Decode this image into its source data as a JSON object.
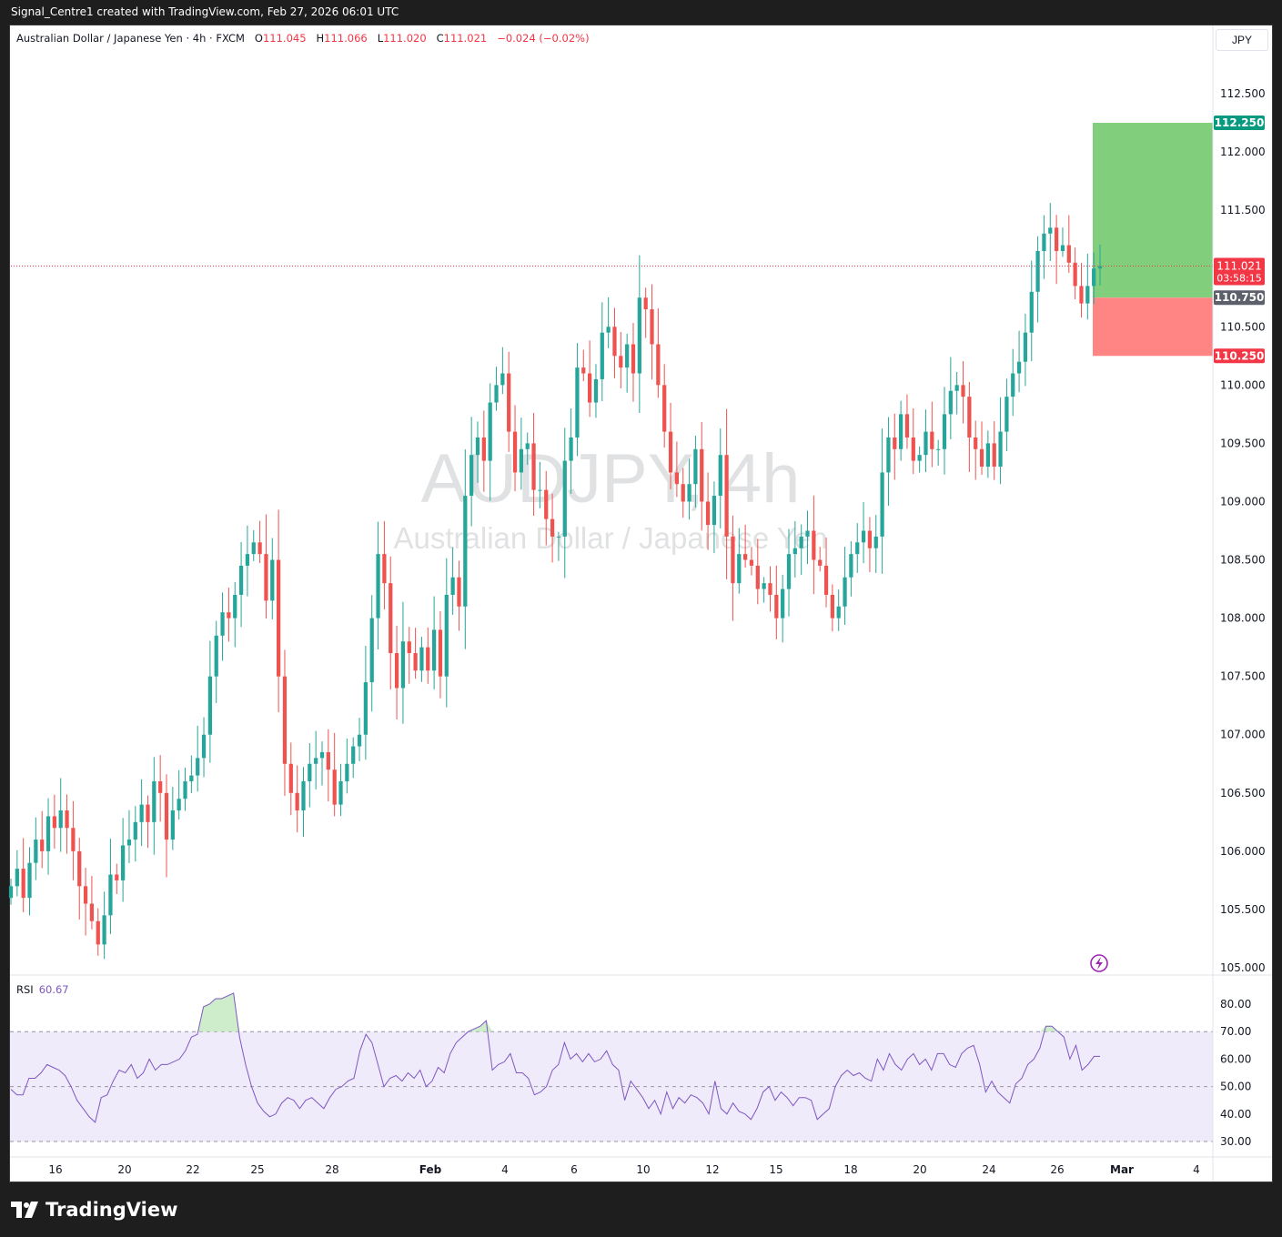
{
  "header": {
    "attribution": "Signal_Centre1 created with TradingView.com, Feb 27, 2026 06:01 UTC"
  },
  "legend": {
    "symbol": "Australian Dollar / Japanese Yen · 4h · FXCM",
    "o_label": "O",
    "o": "111.045",
    "h_label": "H",
    "h": "111.066",
    "l_label": "L",
    "l": "111.020",
    "c_label": "C",
    "c": "111.021",
    "change": "−0.024 (−0.02%)"
  },
  "currency_button": "JPY",
  "watermark": {
    "line1": "AUDJPY, 4h",
    "line2": "Australian Dollar / Japanese Yen"
  },
  "footer": {
    "brand": "TradingView"
  },
  "colors": {
    "up": "#26a69a",
    "down": "#ef5350",
    "target": "#81cf7c",
    "stop": "#ff8585",
    "rsi": "#7e57c2",
    "rsi_band": "#f0ebfa"
  },
  "chart_data": {
    "type": "candlestick",
    "price_axis": {
      "min": 105.0,
      "max": 112.5,
      "ticks": [
        "105.000",
        "105.500",
        "106.000",
        "106.500",
        "107.000",
        "107.500",
        "108.000",
        "108.500",
        "109.000",
        "109.500",
        "110.000",
        "110.500",
        "111.000",
        "111.500",
        "112.000",
        "112.500"
      ]
    },
    "time_axis": {
      "ticks": [
        "16",
        "20",
        "22",
        "25",
        "28",
        "Feb",
        "4",
        "6",
        "10",
        "12",
        "15",
        "18",
        "20",
        "24",
        "26",
        "Mar",
        "4"
      ]
    },
    "position": {
      "target": 112.25,
      "entry": 110.75,
      "stop": 110.25,
      "target_label": "112.250",
      "entry_label": "110.750",
      "stop_label": "110.250"
    },
    "last_price": {
      "value": 111.021,
      "label": "111.021",
      "countdown": "03:58:15"
    },
    "closes": [
      105.7,
      105.85,
      105.6,
      105.9,
      106.1,
      106.0,
      106.3,
      106.2,
      106.35,
      106.2,
      106.0,
      105.7,
      105.55,
      105.4,
      105.2,
      105.45,
      105.8,
      105.75,
      106.05,
      106.1,
      106.25,
      106.4,
      106.25,
      106.6,
      106.5,
      106.1,
      106.35,
      106.45,
      106.6,
      106.65,
      106.8,
      107.0,
      107.5,
      107.85,
      108.05,
      108.0,
      108.2,
      108.45,
      108.55,
      108.65,
      108.55,
      108.15,
      108.5,
      107.5,
      106.75,
      106.5,
      106.35,
      106.6,
      106.75,
      106.8,
      106.85,
      106.7,
      106.4,
      106.6,
      106.75,
      106.9,
      107.0,
      107.45,
      108.0,
      108.55,
      108.3,
      107.7,
      107.4,
      107.8,
      107.7,
      107.55,
      107.75,
      107.55,
      107.9,
      107.5,
      108.2,
      108.35,
      108.1,
      109.05,
      109.4,
      109.55,
      109.35,
      109.85,
      110.0,
      110.1,
      109.6,
      109.25,
      109.45,
      109.5,
      109.1,
      109.1,
      108.85,
      108.7,
      108.7,
      109.35,
      109.55,
      110.15,
      110.1,
      109.85,
      110.05,
      110.45,
      110.5,
      110.25,
      110.15,
      110.35,
      110.1,
      110.75,
      110.65,
      110.35,
      110.0,
      109.6,
      109.25,
      109.15,
      109.0,
      109.15,
      109.45,
      109.0,
      108.8,
      109.05,
      109.4,
      108.7,
      108.3,
      108.55,
      108.5,
      108.45,
      108.25,
      108.3,
      108.2,
      108.0,
      108.25,
      108.55,
      108.6,
      108.7,
      108.75,
      108.5,
      108.45,
      108.2,
      108.0,
      108.1,
      108.35,
      108.55,
      108.65,
      108.75,
      108.6,
      108.7,
      109.25,
      109.55,
      109.45,
      109.75,
      109.55,
      109.35,
      109.4,
      109.6,
      109.45,
      109.45,
      109.75,
      109.95,
      110.0,
      109.9,
      109.55,
      109.45,
      109.3,
      109.5,
      109.3,
      109.6,
      109.9,
      110.1,
      110.2,
      110.45,
      110.8,
      111.15,
      111.3,
      111.35,
      111.15,
      111.2,
      111.05,
      110.85,
      110.7,
      110.85,
      111.0,
      111.02
    ]
  },
  "rsi": {
    "name": "RSI",
    "value": "60.67",
    "axis": {
      "min": 30,
      "max": 80,
      "ticks": [
        "30.00",
        "40.00",
        "50.00",
        "60.00",
        "70.00",
        "80.00"
      ]
    },
    "values": [
      49,
      47,
      47,
      53,
      53,
      55,
      58,
      57,
      56,
      54,
      50,
      45,
      42,
      39,
      37,
      46,
      47,
      52,
      56,
      55,
      58,
      53,
      55,
      60,
      56,
      58,
      58,
      59,
      60,
      63,
      68,
      69,
      79,
      80,
      82,
      82,
      83,
      84,
      68,
      58,
      50,
      44,
      41,
      39,
      40,
      44,
      46,
      45,
      42,
      45,
      46,
      44,
      42,
      46,
      49,
      50,
      52,
      53,
      63,
      69,
      66,
      58,
      50,
      53,
      54,
      52,
      55,
      53,
      56,
      50,
      52,
      57,
      55,
      62,
      66,
      68,
      70,
      71,
      72,
      74,
      56,
      58,
      59,
      62,
      55,
      55,
      53,
      47,
      48,
      50,
      56,
      58,
      66,
      60,
      62,
      59,
      62,
      59,
      60,
      63,
      58,
      56,
      45,
      52,
      49,
      46,
      42,
      45,
      40,
      48,
      42,
      46,
      44,
      47,
      46,
      44,
      40,
      52,
      42,
      40,
      44,
      41,
      40,
      38,
      42,
      48,
      50,
      45,
      48,
      46,
      43,
      46,
      46,
      45,
      38,
      40,
      42,
      50,
      54,
      56,
      54,
      55,
      53,
      52,
      60,
      56,
      62,
      58,
      56,
      60,
      62,
      58,
      60,
      56,
      62,
      62,
      58,
      57,
      62,
      64,
      65,
      58,
      48,
      52,
      48,
      46,
      44,
      51,
      53,
      58,
      60,
      64,
      72,
      72,
      70,
      68,
      60,
      65,
      56,
      58,
      61,
      61
    ]
  }
}
